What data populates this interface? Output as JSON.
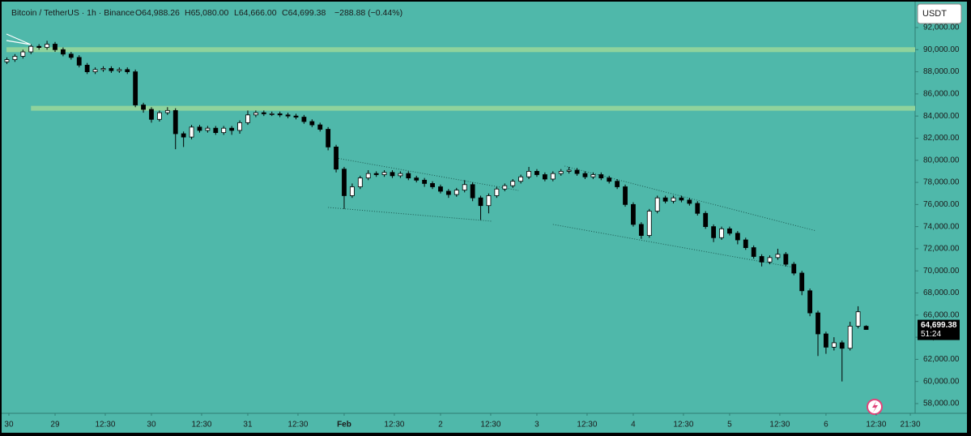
{
  "chart_data": {
    "type": "candlestick",
    "title": "Bitcoin / TetherUS · 1h · Binance",
    "ohlc_text": [
      "O64,988.26",
      "H65,080.00",
      "L64,666.00",
      "C64,699.38",
      "−288.88 (−0.44%)"
    ],
    "currency": "USDT",
    "last_price": {
      "value": 64699.38,
      "label": "64,699.38"
    },
    "countdown": "51:24",
    "up_color": "#ffffff",
    "down_color": "#000000",
    "background": "#4fb8aa",
    "zone_color": "#8fd39c",
    "trend_color": "#1d5a52",
    "x": [
      -12,
      -10,
      -8,
      -6,
      -4,
      -2,
      0,
      2,
      4,
      6,
      8,
      10,
      12,
      14,
      16,
      18,
      20,
      22,
      24,
      26,
      28,
      30,
      32,
      34,
      36,
      38,
      40,
      42,
      44,
      46,
      48,
      50,
      52,
      54,
      56,
      58,
      60,
      62,
      64,
      66,
      68,
      70,
      72,
      74,
      76,
      78,
      80,
      82,
      84,
      86,
      88,
      90,
      92,
      94,
      96,
      98,
      100,
      102,
      104,
      106,
      108,
      110,
      112,
      114,
      116,
      118,
      120,
      122,
      124,
      126,
      128,
      130,
      132,
      134,
      136,
      138,
      140,
      142,
      144,
      146,
      148,
      150,
      152,
      154,
      156,
      158,
      160,
      162,
      164,
      166,
      168,
      170,
      172,
      174,
      176,
      178,
      180,
      182,
      184,
      186,
      188,
      190,
      192,
      194,
      196,
      198,
      200,
      202
    ],
    "open": [
      88900,
      89100,
      89400,
      89800,
      90300,
      90200,
      90500,
      90000,
      89600,
      89300,
      88600,
      88000,
      88200,
      88300,
      88100,
      88200,
      88000,
      85000,
      84600,
      83700,
      84300,
      84500,
      82400,
      82100,
      83000,
      82700,
      82900,
      82500,
      82900,
      82700,
      83400,
      84100,
      84300,
      84200,
      84200,
      84100,
      84000,
      83900,
      83500,
      83200,
      82800,
      81200,
      79200,
      76800,
      77600,
      78400,
      78800,
      78700,
      78900,
      78600,
      78800,
      78400,
      78200,
      77900,
      77600,
      77200,
      76900,
      77300,
      77800,
      76600,
      75900,
      76800,
      77400,
      77700,
      78100,
      78500,
      79000,
      78700,
      78300,
      78800,
      79000,
      79100,
      78800,
      78500,
      78700,
      78400,
      78100,
      77600,
      76000,
      74200,
      73200,
      75400,
      76600,
      76300,
      76600,
      76400,
      76100,
      75200,
      74000,
      73000,
      73800,
      73400,
      72800,
      72100,
      71300,
      70800,
      71200,
      71500,
      70600,
      69800,
      68200,
      66200,
      64300,
      63100,
      63500,
      63000,
      65000,
      64988.26
    ],
    "high": [
      89300,
      89600,
      90000,
      90500,
      90500,
      90800,
      90700,
      90200,
      89800,
      89500,
      88800,
      88400,
      88500,
      88500,
      88400,
      88400,
      88200,
      85200,
      84800,
      84500,
      84800,
      84700,
      82600,
      83200,
      83200,
      83100,
      83100,
      83100,
      83100,
      83600,
      84500,
      84500,
      84500,
      84400,
      84400,
      84300,
      84200,
      84100,
      83700,
      83400,
      83000,
      81400,
      79400,
      77900,
      78600,
      79100,
      79000,
      79100,
      79100,
      79000,
      79000,
      78600,
      78400,
      78100,
      77800,
      77400,
      77500,
      78200,
      78000,
      76800,
      77000,
      77600,
      77900,
      78300,
      78700,
      79400,
      79200,
      78900,
      79000,
      79200,
      79400,
      79300,
      79000,
      78900,
      78900,
      78600,
      78300,
      77800,
      76200,
      74400,
      75600,
      76800,
      76800,
      76800,
      76800,
      76600,
      76300,
      75400,
      74200,
      74000,
      74000,
      73600,
      73000,
      72300,
      71500,
      71400,
      72000,
      71700,
      70800,
      70000,
      68400,
      66400,
      64500,
      64000,
      63700,
      65400,
      66800,
      65080
    ],
    "low": [
      88700,
      88900,
      89200,
      89600,
      90000,
      90000,
      89800,
      89400,
      89100,
      88400,
      87800,
      87800,
      88000,
      87900,
      87900,
      87800,
      84800,
      84300,
      83400,
      83500,
      84100,
      81000,
      81200,
      81900,
      82500,
      82500,
      82300,
      82300,
      82300,
      82400,
      83200,
      83900,
      84000,
      84000,
      83900,
      83800,
      83700,
      83300,
      83000,
      82600,
      80900,
      78900,
      75600,
      76600,
      77400,
      78200,
      78500,
      78500,
      78400,
      78400,
      78200,
      78000,
      77600,
      77400,
      77000,
      76600,
      76700,
      77100,
      76300,
      74600,
      75200,
      76600,
      77200,
      77500,
      77900,
      78300,
      78500,
      78100,
      78100,
      78600,
      78800,
      78600,
      78300,
      78300,
      78200,
      77900,
      77400,
      75800,
      74000,
      72900,
      73000,
      75200,
      76100,
      76100,
      76200,
      75900,
      75000,
      73800,
      72600,
      72800,
      73200,
      72400,
      71900,
      71100,
      70400,
      70600,
      71000,
      70400,
      69600,
      67800,
      65900,
      62300,
      62500,
      62800,
      60000,
      62800,
      64800,
      64666
    ],
    "close": [
      89100,
      89400,
      89800,
      90300,
      90200,
      90500,
      90000,
      89600,
      89300,
      88600,
      88000,
      88200,
      88300,
      88100,
      88200,
      88000,
      85000,
      84600,
      83700,
      84300,
      84500,
      82400,
      82100,
      83000,
      82700,
      82900,
      82500,
      82900,
      82700,
      83400,
      84100,
      84300,
      84200,
      84200,
      84100,
      84000,
      83900,
      83500,
      83200,
      82800,
      81200,
      79200,
      76800,
      77600,
      78400,
      78800,
      78700,
      78900,
      78600,
      78800,
      78400,
      78200,
      77900,
      77600,
      77200,
      76900,
      77300,
      77800,
      76600,
      75900,
      76800,
      77400,
      77700,
      78100,
      78500,
      79000,
      78700,
      78300,
      78800,
      79000,
      79100,
      78800,
      78500,
      78700,
      78400,
      78100,
      77600,
      76000,
      74200,
      73200,
      75400,
      76600,
      76300,
      76600,
      76400,
      76100,
      75200,
      74000,
      73000,
      73800,
      73400,
      72800,
      72100,
      71300,
      70800,
      71200,
      71500,
      70600,
      69800,
      68200,
      66200,
      64300,
      63100,
      63500,
      63000,
      65000,
      66300,
      64699.38
    ],
    "zones": [
      {
        "low": 89780,
        "high": 90220
      },
      {
        "low": 84480,
        "high": 84920,
        "x_from": -6
      }
    ],
    "trend_lines": [
      {
        "x": [
          70,
          115.4
        ],
        "y": [
          80205,
          77275
        ]
      },
      {
        "x": [
          68,
          108.7
        ],
        "y": [
          75736,
          74491
        ]
      },
      {
        "x": [
          126.9,
          189.6
        ],
        "y": [
          79473,
          73612
        ]
      },
      {
        "x": [
          124,
          183.9
        ],
        "y": [
          74198,
          70315
        ]
      }
    ],
    "xlim": [
      -12.1,
      214.2
    ],
    "xticks": [
      {
        "value": -11.5,
        "label": "30"
      },
      {
        "value": 0,
        "label": "29"
      },
      {
        "value": 12.5,
        "label": "12:30"
      },
      {
        "value": 24,
        "label": "30"
      },
      {
        "value": 36.5,
        "label": "12:30"
      },
      {
        "value": 48,
        "label": "31"
      },
      {
        "value": 60.5,
        "label": "12:30"
      },
      {
        "value": 72,
        "label": "Feb"
      },
      {
        "value": 84.5,
        "label": "12:30"
      },
      {
        "value": 96,
        "label": "2"
      },
      {
        "value": 108.5,
        "label": "12:30"
      },
      {
        "value": 120,
        "label": "3"
      },
      {
        "value": 132.5,
        "label": "12:30"
      },
      {
        "value": 144,
        "label": "4"
      },
      {
        "value": 156.5,
        "label": "12:30"
      },
      {
        "value": 168,
        "label": "5"
      },
      {
        "value": 180.5,
        "label": "12:30"
      },
      {
        "value": 192,
        "label": "6"
      },
      {
        "value": 204.5,
        "label": "12:30"
      },
      {
        "value": 213,
        "label": "21:30"
      }
    ],
    "ylim": [
      57120,
      94125
    ],
    "yticks": [
      {
        "value": 58000,
        "label": "58,000.00"
      },
      {
        "value": 60000,
        "label": "60,000.00"
      },
      {
        "value": 62000,
        "label": "62,000.00"
      },
      {
        "value": 64000,
        "label": "64,000.00"
      },
      {
        "value": 66000,
        "label": "66,000.00"
      },
      {
        "value": 68000,
        "label": "68,000.00"
      },
      {
        "value": 70000,
        "label": "70,000.00"
      },
      {
        "value": 72000,
        "label": "72,000.00"
      },
      {
        "value": 74000,
        "label": "74,000.00"
      },
      {
        "value": 76000,
        "label": "76,000.00"
      },
      {
        "value": 78000,
        "label": "78,000.00"
      },
      {
        "value": 80000,
        "label": "80,000.00"
      },
      {
        "value": 82000,
        "label": "82,000.00"
      },
      {
        "value": 84000,
        "label": "84,000.00"
      },
      {
        "value": 86000,
        "label": "86,000.00"
      },
      {
        "value": 88000,
        "label": "88,000.00"
      },
      {
        "value": 90000,
        "label": "90,000.00"
      },
      {
        "value": 92000,
        "label": "92,000.00"
      }
    ]
  }
}
